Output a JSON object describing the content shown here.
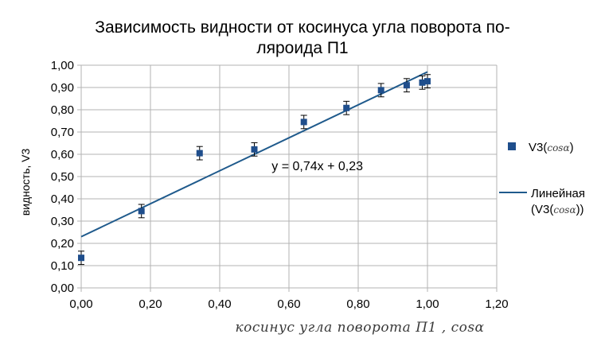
{
  "chart_data": {
    "type": "scatter",
    "title_lines": [
      "Зависимость видности от косинуса угла поворота по-",
      "ляроида П1"
    ],
    "xlabel": "косинус угла поворота П1 , cosα",
    "ylabel": "видность, V3",
    "xlim": [
      0,
      1.2
    ],
    "ylim": [
      0,
      1.0
    ],
    "x_ticks": [
      "0,00",
      "0,20",
      "0,40",
      "0,60",
      "0,80",
      "1,00",
      "1,20"
    ],
    "y_ticks": [
      "0,00",
      "0,10",
      "0,20",
      "0,30",
      "0,40",
      "0,50",
      "0,60",
      "0,70",
      "0,80",
      "0,90",
      "1,00"
    ],
    "grid": true,
    "legend_position": "right",
    "series": [
      {
        "name_prefix": "V3(",
        "name_hand": "cosα",
        "name_suffix": ")",
        "color": "#1f4e8c",
        "x": [
          0.0,
          0.174,
          0.342,
          0.5,
          0.643,
          0.766,
          0.866,
          0.94,
          0.985,
          1.0
        ],
        "y": [
          0.135,
          0.345,
          0.605,
          0.622,
          0.745,
          0.808,
          0.888,
          0.91,
          0.922,
          0.928
        ],
        "error": [
          0.03,
          0.03,
          0.03,
          0.03,
          0.03,
          0.03,
          0.03,
          0.03,
          0.03,
          0.03
        ]
      }
    ],
    "trendline": {
      "name_prefix": "Линейная",
      "name_line2_prefix": "(V3(",
      "name_hand": "cosα",
      "name_suffix": "))",
      "slope": 0.74,
      "intercept": 0.23,
      "x_range": [
        0,
        1.0
      ],
      "color": "#1f5a8c",
      "equation": "y = 0,74x + 0,23",
      "equation_at": [
        0.55,
        0.55
      ]
    }
  }
}
